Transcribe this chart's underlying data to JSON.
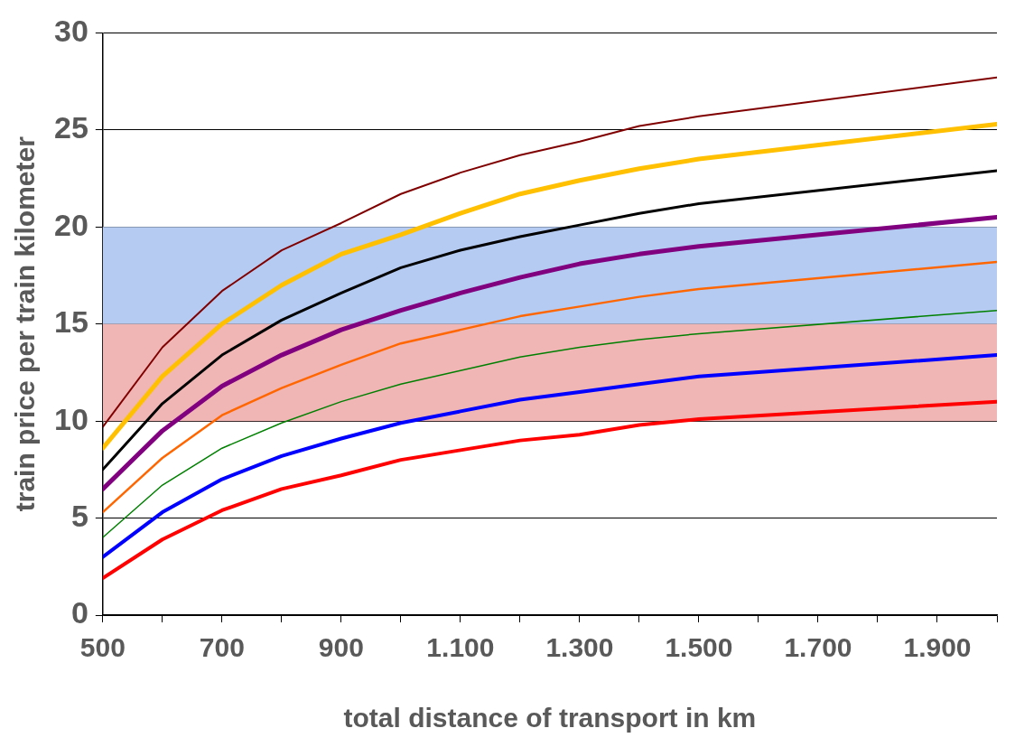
{
  "chart_data": {
    "type": "line",
    "xlabel": "total distance of transport in km",
    "ylabel": "train price per train kilometer",
    "x": [
      500,
      600,
      700,
      800,
      900,
      1000,
      1100,
      1200,
      1300,
      1400,
      1500,
      2000
    ],
    "xlim": [
      500,
      2000
    ],
    "xticks": [
      500,
      {
        "value": 600,
        "label": null
      },
      700,
      {
        "value": 800,
        "label": null
      },
      900,
      {
        "value": 1000,
        "label": null
      },
      {
        "value": 1100,
        "label": "1.100"
      },
      {
        "value": 1200,
        "label": null
      },
      {
        "value": 1300,
        "label": "1.300"
      },
      {
        "value": 1400,
        "label": null
      },
      {
        "value": 1500,
        "label": "1.500"
      },
      {
        "value": 1600,
        "label": null
      },
      {
        "value": 1700,
        "label": "1.700"
      },
      {
        "value": 1800,
        "label": null
      },
      {
        "value": 1900,
        "label": "1.900"
      },
      {
        "value": 2000,
        "label": null
      }
    ],
    "ylim": [
      0,
      30
    ],
    "yticks": [
      0,
      5,
      10,
      15,
      20,
      25,
      30
    ],
    "grid": "y",
    "legend": false,
    "marker": "none",
    "line_style": "solid",
    "bands": [
      {
        "axis": "y",
        "from": 15,
        "to": 20,
        "color": "#b5cbf2"
      },
      {
        "axis": "y",
        "from": 10,
        "to": 15,
        "color": "#f0b5b5"
      }
    ],
    "series": [
      {
        "color": "#800000",
        "values": [
          9.7,
          13.8,
          16.7,
          18.8,
          20.2,
          21.7,
          22.8,
          23.7,
          24.4,
          25.2,
          25.7,
          27.7
        ]
      },
      {
        "color": "#ffc000",
        "values": [
          8.6,
          12.3,
          15.0,
          17.0,
          18.6,
          19.6,
          20.7,
          21.7,
          22.4,
          23.0,
          23.5,
          25.3
        ]
      },
      {
        "color": "#000000",
        "values": [
          7.5,
          10.9,
          13.4,
          15.2,
          16.6,
          17.9,
          18.8,
          19.5,
          20.1,
          20.7,
          21.2,
          22.9
        ]
      },
      {
        "color": "#800080",
        "values": [
          6.5,
          9.5,
          11.8,
          13.4,
          14.7,
          15.7,
          16.6,
          17.4,
          18.1,
          18.6,
          19.0,
          20.5
        ]
      },
      {
        "color": "#ff6600",
        "values": [
          5.3,
          8.1,
          10.3,
          11.7,
          12.9,
          14.0,
          14.7,
          15.4,
          15.9,
          16.4,
          16.8,
          18.2
        ]
      },
      {
        "color": "#008000",
        "values": [
          4.0,
          6.7,
          8.6,
          9.9,
          11.0,
          11.9,
          12.6,
          13.3,
          13.8,
          14.2,
          14.5,
          15.7
        ]
      },
      {
        "color": "#0000ff",
        "values": [
          3.0,
          5.3,
          7.0,
          8.2,
          9.1,
          9.9,
          10.5,
          11.1,
          11.5,
          11.9,
          12.3,
          13.4
        ]
      },
      {
        "color": "#ff0000",
        "values": [
          1.9,
          3.9,
          5.4,
          6.5,
          7.2,
          8.0,
          8.5,
          9.0,
          9.3,
          9.8,
          10.1,
          11.0
        ]
      }
    ]
  }
}
